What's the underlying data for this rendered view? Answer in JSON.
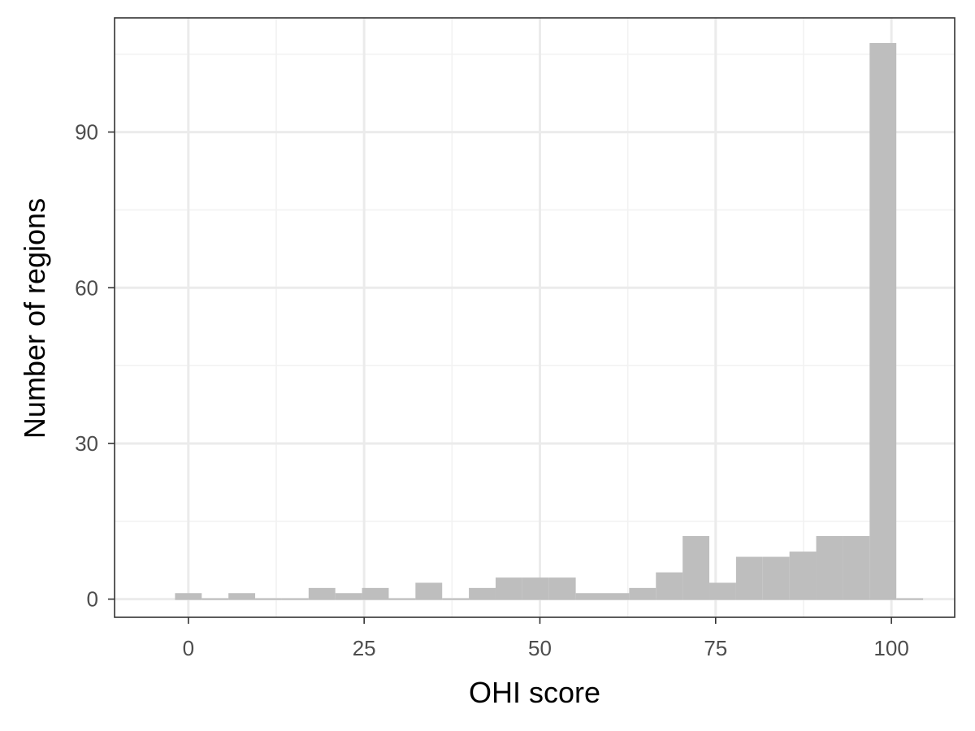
{
  "chart_data": {
    "type": "bar",
    "title": "",
    "xlabel": "OHI score",
    "ylabel": "Number of regions",
    "xlim": [
      -10.5,
      109
    ],
    "ylim": [
      -3.5,
      112
    ],
    "x_ticks": [
      0,
      25,
      50,
      75,
      100
    ],
    "y_ticks": [
      0,
      30,
      60,
      90
    ],
    "grid": true,
    "bin_width": 3.8,
    "bins": [
      {
        "x": 0.0,
        "count": 1
      },
      {
        "x": 3.8,
        "count": 0
      },
      {
        "x": 7.6,
        "count": 1
      },
      {
        "x": 11.4,
        "count": 0
      },
      {
        "x": 15.2,
        "count": 0
      },
      {
        "x": 19.0,
        "count": 2
      },
      {
        "x": 22.8,
        "count": 1
      },
      {
        "x": 26.6,
        "count": 2
      },
      {
        "x": 30.4,
        "count": 0
      },
      {
        "x": 34.2,
        "count": 3
      },
      {
        "x": 38.0,
        "count": 0
      },
      {
        "x": 41.8,
        "count": 2
      },
      {
        "x": 45.6,
        "count": 4
      },
      {
        "x": 49.4,
        "count": 4
      },
      {
        "x": 53.2,
        "count": 4
      },
      {
        "x": 57.0,
        "count": 1
      },
      {
        "x": 60.8,
        "count": 1
      },
      {
        "x": 64.6,
        "count": 2
      },
      {
        "x": 68.4,
        "count": 5
      },
      {
        "x": 72.2,
        "count": 12
      },
      {
        "x": 76.0,
        "count": 3
      },
      {
        "x": 79.8,
        "count": 8
      },
      {
        "x": 83.6,
        "count": 8
      },
      {
        "x": 87.4,
        "count": 9
      },
      {
        "x": 91.2,
        "count": 12
      },
      {
        "x": 95.0,
        "count": 12
      },
      {
        "x": 98.8,
        "count": 107
      },
      {
        "x": 102.6,
        "count": 0
      }
    ],
    "colors": {
      "bar": "#bebebe",
      "panel_border": "#333333",
      "grid_major": "#ebebeb",
      "grid_minor": "#f2f2f2",
      "tick": "#333333"
    }
  }
}
